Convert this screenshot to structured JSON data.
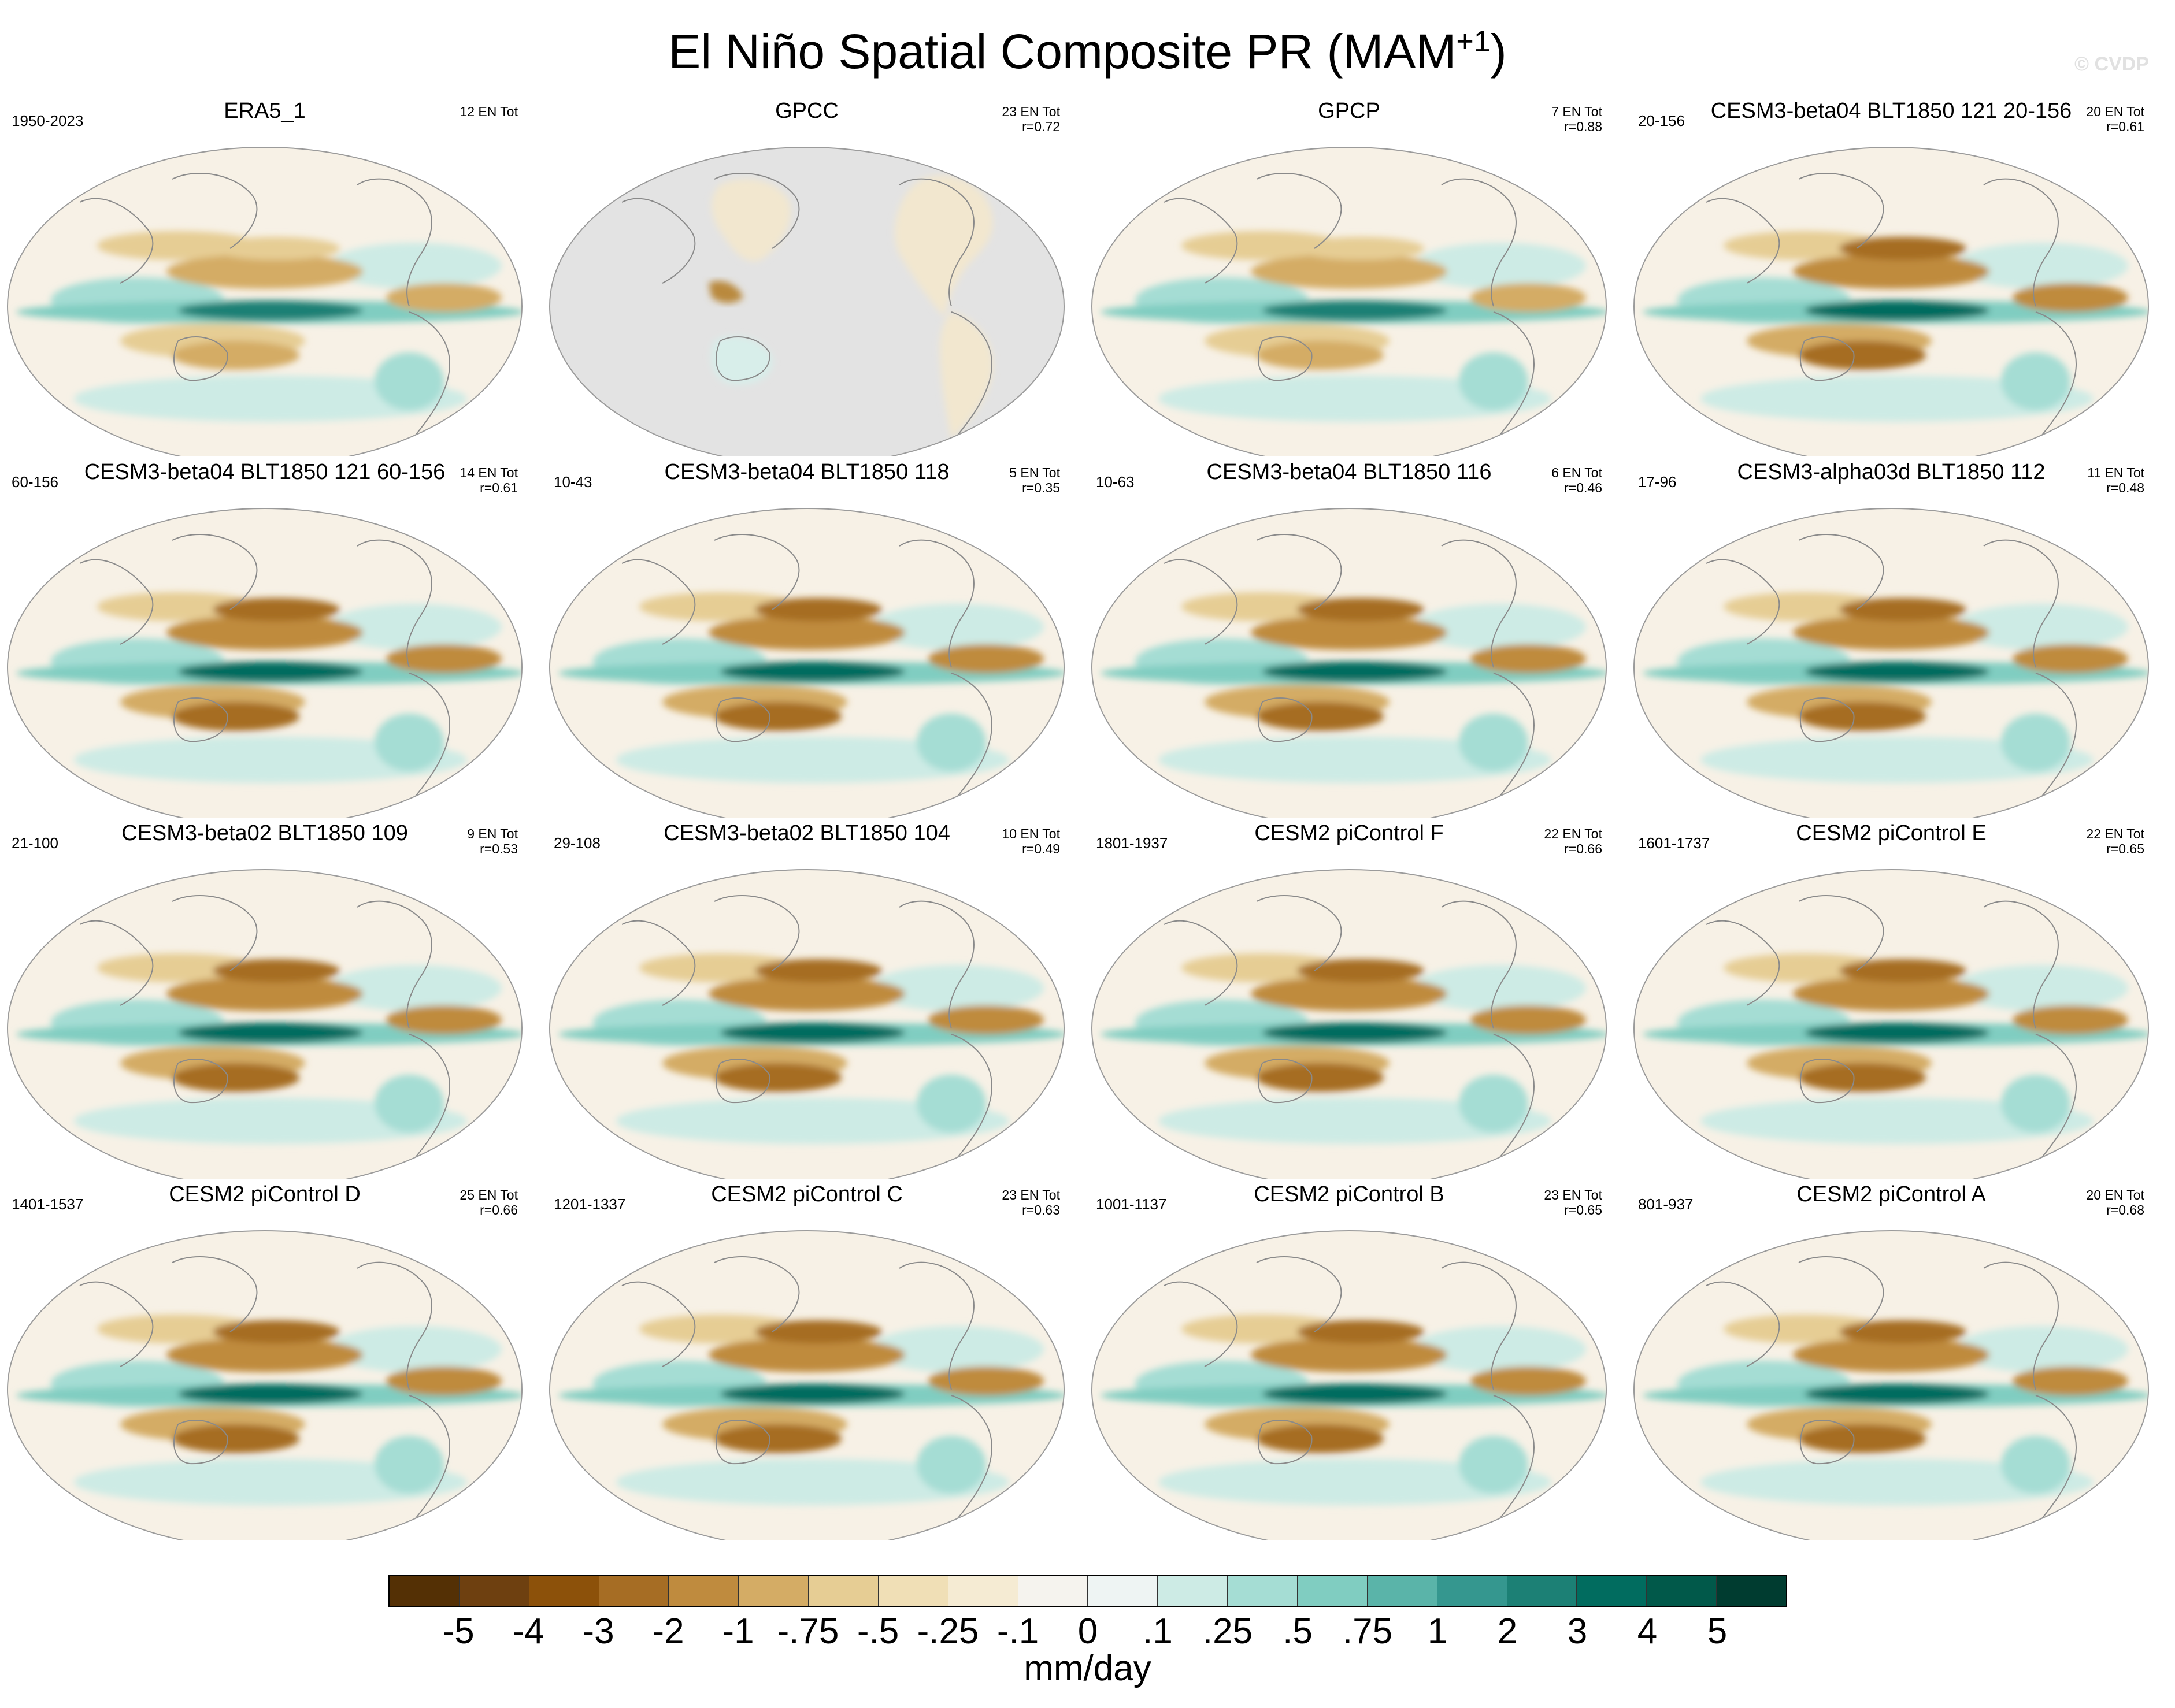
{
  "title": "El Niño Spatial Composite PR (MAM",
  "title_sup": "+1",
  "title_close": ")",
  "watermark": "© CVDP",
  "panels": [
    {
      "title": "ERA5_1",
      "left": "1950-2023",
      "right1": "12 EN Tot",
      "right2": "",
      "style": "obs"
    },
    {
      "title": "GPCC",
      "left": "",
      "right1": "23 EN Tot",
      "right2": "r=0.72",
      "style": "land"
    },
    {
      "title": "GPCP",
      "left": "",
      "right1": "7 EN Tot",
      "right2": "r=0.88",
      "style": "obs"
    },
    {
      "title": "CESM3-beta04 BLT1850 121 20-156",
      "left": "20-156",
      "right1": "20 EN Tot",
      "right2": "r=0.61",
      "style": "model"
    },
    {
      "title": "CESM3-beta04 BLT1850 121 60-156",
      "left": "60-156",
      "right1": "14 EN Tot",
      "right2": "r=0.61",
      "style": "model"
    },
    {
      "title": "CESM3-beta04 BLT1850 118",
      "left": "10-43",
      "right1": "5 EN Tot",
      "right2": "r=0.35",
      "style": "model"
    },
    {
      "title": "CESM3-beta04 BLT1850 116",
      "left": "10-63",
      "right1": "6 EN Tot",
      "right2": "r=0.46",
      "style": "model"
    },
    {
      "title": "CESM3-alpha03d BLT1850 112",
      "left": "17-96",
      "right1": "11 EN Tot",
      "right2": "r=0.48",
      "style": "model"
    },
    {
      "title": "CESM3-beta02 BLT1850 109",
      "left": "21-100",
      "right1": "9 EN Tot",
      "right2": "r=0.53",
      "style": "model"
    },
    {
      "title": "CESM3-beta02 BLT1850 104",
      "left": "29-108",
      "right1": "10 EN Tot",
      "right2": "r=0.49",
      "style": "model"
    },
    {
      "title": "CESM2 piControl F",
      "left": "1801-1937",
      "right1": "22 EN Tot",
      "right2": "r=0.66",
      "style": "model"
    },
    {
      "title": "CESM2 piControl E",
      "left": "1601-1737",
      "right1": "22 EN Tot",
      "right2": "r=0.65",
      "style": "model"
    },
    {
      "title": "CESM2 piControl D",
      "left": "1401-1537",
      "right1": "25 EN Tot",
      "right2": "r=0.66",
      "style": "model"
    },
    {
      "title": "CESM2 piControl C",
      "left": "1201-1337",
      "right1": "23 EN Tot",
      "right2": "r=0.63",
      "style": "model"
    },
    {
      "title": "CESM2 piControl B",
      "left": "1001-1137",
      "right1": "23 EN Tot",
      "right2": "r=0.65",
      "style": "model"
    },
    {
      "title": "CESM2 piControl A",
      "left": "801-937",
      "right1": "20 EN Tot",
      "right2": "r=0.68",
      "style": "model"
    }
  ],
  "colorbar": {
    "colors": [
      "#543005",
      "#6e4010",
      "#8c510a",
      "#a66d24",
      "#bf8b3e",
      "#d4ac65",
      "#e6cd94",
      "#f0dfb6",
      "#f5ebd3",
      "#f5f3ee",
      "#eef4f3",
      "#cdebe5",
      "#a5ddd4",
      "#80cdc1",
      "#5ab4a9",
      "#35978f",
      "#1c8075",
      "#016c5f",
      "#01594a",
      "#003c30"
    ],
    "labels": [
      "-5",
      "-4",
      "-3",
      "-2",
      "-1",
      "-.75",
      "-.5",
      "-.25",
      "-.1",
      "0",
      ".1",
      ".25",
      ".5",
      ".75",
      "1",
      "2",
      "3",
      "4",
      "5"
    ],
    "units": "mm/day"
  }
}
